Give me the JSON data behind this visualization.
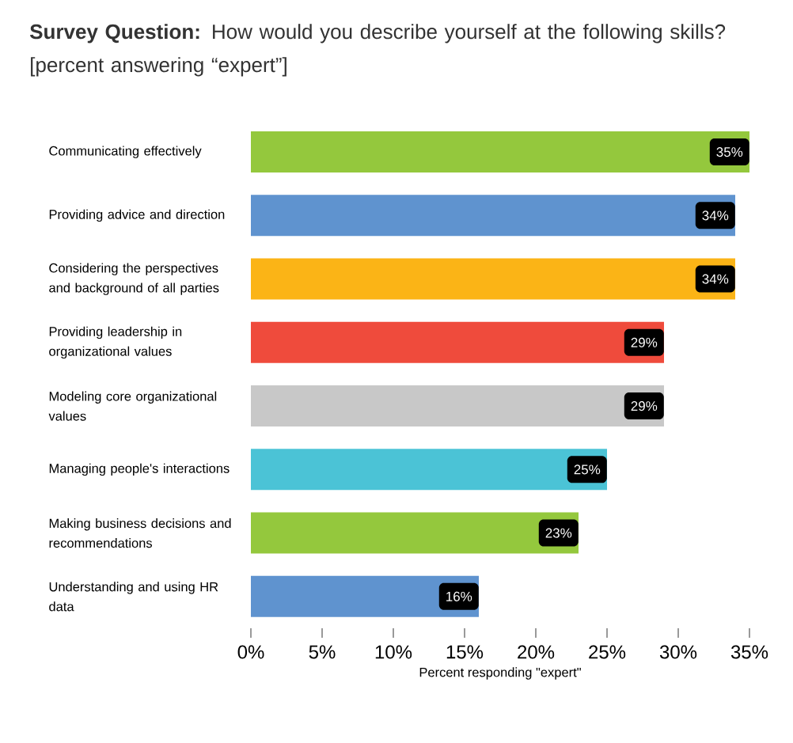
{
  "chart_data": {
    "type": "bar",
    "orientation": "horizontal",
    "title": "**Survey Question:** How would you describe yourself at the following skills? [percent answering “expert”]",
    "categories": [
      "Communicating effectively",
      "Providing advice and direction",
      "Considering the perspectives and background of all parties",
      "Providing leadership in organizational values",
      "Modeling core organizational values",
      "Managing people's interactions",
      "Making business decisions and recommendations",
      "Understanding and using HR data"
    ],
    "values": [
      35,
      34,
      34,
      29,
      29,
      25,
      23,
      16
    ],
    "value_labels": [
      "35%",
      "34%",
      "34%",
      "29%",
      "29%",
      "25%",
      "23%",
      "16%"
    ],
    "colors": [
      "#94c83d",
      "#5f93cf",
      "#fbb416",
      "#ef4b3c",
      "#c8c8c8",
      "#4bc3d6",
      "#94c83d",
      "#5f93cf"
    ],
    "xlim": [
      0,
      35
    ],
    "xticks": [
      {
        "value": 0,
        "label": "0%"
      },
      {
        "value": 5,
        "label": "5%"
      },
      {
        "value": 10,
        "label": "10%"
      },
      {
        "value": 15,
        "label": "15%"
      },
      {
        "value": 20,
        "label": "20%"
      },
      {
        "value": 25,
        "label": "25%"
      },
      {
        "value": 30,
        "label": "30%"
      },
      {
        "value": 35,
        "label": "35%"
      }
    ],
    "xlabel": "Percent responding \"expert\""
  }
}
